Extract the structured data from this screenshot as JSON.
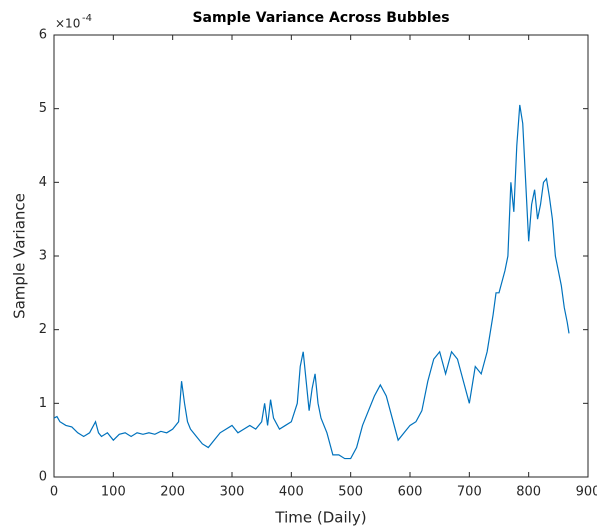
{
  "chart_data": {
    "type": "line",
    "title": "Sample Variance Across Bubbles",
    "x_label": "Time (Daily)",
    "y_label": "Sample Variance",
    "y_multiplier": "×10",
    "y_multiplier_exp": "-4",
    "xlim": [
      0,
      900
    ],
    "xticks": [
      0,
      100,
      200,
      300,
      400,
      500,
      600,
      700,
      800,
      900
    ],
    "ylim": [
      0,
      6
    ],
    "yticks": [
      0,
      1,
      2,
      3,
      4,
      5,
      6
    ],
    "series": [
      {
        "color": "#0072bd",
        "x": [
          0,
          5,
          10,
          20,
          30,
          40,
          50,
          60,
          70,
          75,
          80,
          90,
          100,
          110,
          120,
          130,
          140,
          150,
          160,
          170,
          180,
          190,
          200,
          210,
          215,
          220,
          225,
          230,
          240,
          250,
          260,
          270,
          280,
          290,
          300,
          310,
          320,
          330,
          340,
          350,
          355,
          360,
          365,
          370,
          380,
          390,
          400,
          410,
          415,
          420,
          425,
          430,
          435,
          440,
          445,
          450,
          460,
          470,
          480,
          490,
          500,
          510,
          520,
          530,
          540,
          550,
          560,
          570,
          580,
          590,
          600,
          610,
          620,
          630,
          640,
          650,
          660,
          670,
          680,
          690,
          700,
          710,
          720,
          730,
          740,
          745,
          750,
          760,
          765,
          770,
          775,
          780,
          785,
          790,
          795,
          800,
          805,
          810,
          815,
          820,
          825,
          830,
          835,
          840,
          845,
          850,
          855,
          860,
          865,
          868
        ],
        "values": [
          0.8,
          0.82,
          0.75,
          0.7,
          0.68,
          0.6,
          0.55,
          0.6,
          0.75,
          0.6,
          0.55,
          0.6,
          0.5,
          0.58,
          0.6,
          0.55,
          0.6,
          0.58,
          0.6,
          0.58,
          0.62,
          0.6,
          0.65,
          0.75,
          1.3,
          1.0,
          0.75,
          0.65,
          0.55,
          0.45,
          0.4,
          0.5,
          0.6,
          0.65,
          0.7,
          0.6,
          0.65,
          0.7,
          0.65,
          0.75,
          1.0,
          0.7,
          1.05,
          0.8,
          0.65,
          0.7,
          0.75,
          1.0,
          1.5,
          1.7,
          1.3,
          0.9,
          1.2,
          1.4,
          1.0,
          0.8,
          0.6,
          0.3,
          0.3,
          0.25,
          0.25,
          0.4,
          0.7,
          0.9,
          1.1,
          1.25,
          1.1,
          0.8,
          0.5,
          0.6,
          0.7,
          0.75,
          0.9,
          1.3,
          1.6,
          1.7,
          1.4,
          1.7,
          1.6,
          1.3,
          1.0,
          1.5,
          1.4,
          1.7,
          2.2,
          2.5,
          2.5,
          2.8,
          3.0,
          4.0,
          3.6,
          4.5,
          5.05,
          4.8,
          4.0,
          3.2,
          3.7,
          3.9,
          3.5,
          3.7,
          4.0,
          4.05,
          3.8,
          3.5,
          3.0,
          2.8,
          2.6,
          2.3,
          2.1,
          1.95
        ]
      }
    ]
  }
}
